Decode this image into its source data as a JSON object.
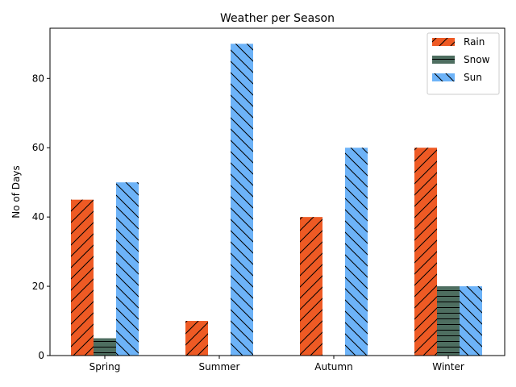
{
  "chart_data": {
    "type": "bar",
    "title": "Weather per Season",
    "xlabel": "",
    "ylabel": "No of Days",
    "categories": [
      "Spring",
      "Summer",
      "Autumn",
      "Winter"
    ],
    "series": [
      {
        "name": "Rain",
        "values": [
          45,
          10,
          40,
          60
        ],
        "color": "#EE5A24",
        "hatch": "forward-diagonal"
      },
      {
        "name": "Snow",
        "values": [
          5,
          0,
          0,
          20
        ],
        "color": "#4E6E60",
        "hatch": "horizontal"
      },
      {
        "name": "Sun",
        "values": [
          50,
          90,
          60,
          20
        ],
        "color": "#6DB3F8",
        "hatch": "back-diagonal"
      }
    ],
    "ylim": [
      0,
      94.5
    ],
    "yticks": [
      0,
      20,
      40,
      60,
      80
    ],
    "legend": "top-right",
    "grid": false
  }
}
